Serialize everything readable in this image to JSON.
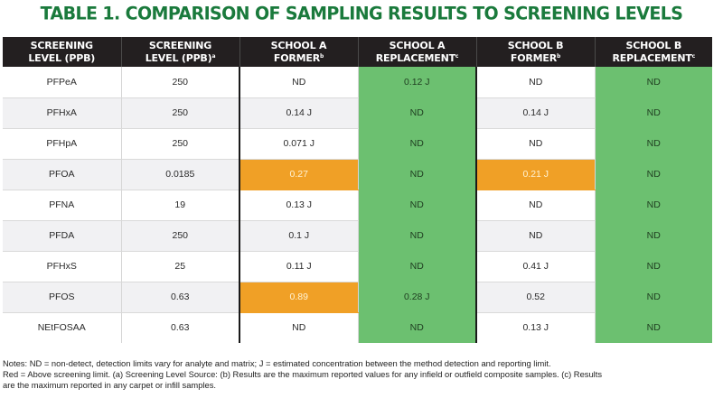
{
  "title": "TABLE 1. COMPARISON OF SAMPLING RESULTS TO SCREENING LEVELS",
  "colors": {
    "title_green": "#1a7a3c",
    "header_bg": "#231f20",
    "replacement_green": "#6cc070",
    "exceed_orange": "#f0a026"
  },
  "columns": [
    {
      "line1": "SCREENING",
      "line2": "LEVEL (PPB)",
      "sup": ""
    },
    {
      "line1": "SCREENING",
      "line2": "LEVEL (PPB)",
      "sup": "a"
    },
    {
      "line1": "SCHOOL A",
      "line2": "FORMER",
      "sup": "b"
    },
    {
      "line1": "SCHOOL A",
      "line2": "REPLACEMENT",
      "sup": "c"
    },
    {
      "line1": "SCHOOL B",
      "line2": "FORMER",
      "sup": "b"
    },
    {
      "line1": "SCHOOL B",
      "line2": "REPLACEMENT",
      "sup": "c"
    }
  ],
  "rows": [
    {
      "analyte": "PFPeA",
      "level": "250",
      "a_former": "ND",
      "a_repl": "0.12 J",
      "b_former": "ND",
      "b_repl": "ND",
      "a_former_exceeds": false,
      "b_former_exceeds": false
    },
    {
      "analyte": "PFHxA",
      "level": "250",
      "a_former": "0.14 J",
      "a_repl": "ND",
      "b_former": "0.14 J",
      "b_repl": "ND",
      "a_former_exceeds": false,
      "b_former_exceeds": false
    },
    {
      "analyte": "PFHpA",
      "level": "250",
      "a_former": "0.071 J",
      "a_repl": "ND",
      "b_former": "ND",
      "b_repl": "ND",
      "a_former_exceeds": false,
      "b_former_exceeds": false
    },
    {
      "analyte": "PFOA",
      "level": "0.0185",
      "a_former": "0.27",
      "a_repl": "ND",
      "b_former": "0.21 J",
      "b_repl": "ND",
      "a_former_exceeds": true,
      "b_former_exceeds": true
    },
    {
      "analyte": "PFNA",
      "level": "19",
      "a_former": "0.13 J",
      "a_repl": "ND",
      "b_former": "ND",
      "b_repl": "ND",
      "a_former_exceeds": false,
      "b_former_exceeds": false
    },
    {
      "analyte": "PFDA",
      "level": "250",
      "a_former": "0.1 J",
      "a_repl": "ND",
      "b_former": "ND",
      "b_repl": "ND",
      "a_former_exceeds": false,
      "b_former_exceeds": false
    },
    {
      "analyte": "PFHxS",
      "level": "25",
      "a_former": "0.11 J",
      "a_repl": "ND",
      "b_former": "0.41 J",
      "b_repl": "ND",
      "a_former_exceeds": false,
      "b_former_exceeds": false
    },
    {
      "analyte": "PFOS",
      "level": "0.63",
      "a_former": "0.89",
      "a_repl": "0.28 J",
      "b_former": "0.52",
      "b_repl": "ND",
      "a_former_exceeds": true,
      "b_former_exceeds": false
    },
    {
      "analyte": "NEtFOSAA",
      "level": "0.63",
      "a_former": "ND",
      "a_repl": "ND",
      "b_former": "0.13 J",
      "b_repl": "ND",
      "a_former_exceeds": false,
      "b_former_exceeds": false
    }
  ],
  "notes": [
    "Notes: ND = non-detect, detection limits vary for analyte and matrix; J = estimated concentration between the method detection and reporting limit.",
    "Red = Above screening limit. (a) Screening Level Source: (b) Results are the maximum reported values for any infield or outfield composite samples. (c) Results",
    "are the maximum reported in any carpet or infill samples."
  ]
}
